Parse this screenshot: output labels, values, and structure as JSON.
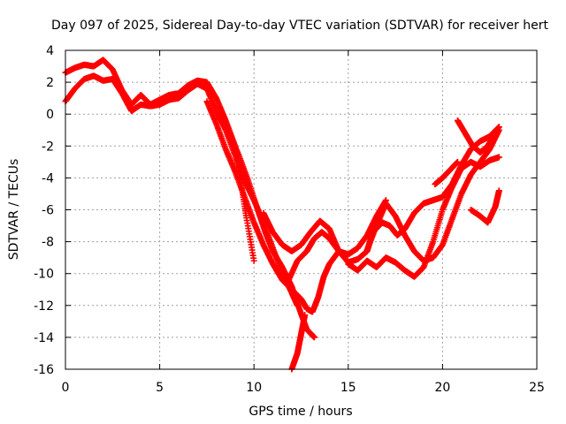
{
  "chart_data": {
    "type": "scatter",
    "title": "Day 097 of 2025, Sidereal Day-to-day VTEC variation (SDTVAR) for receiver hert",
    "xlabel": "GPS time / hours",
    "ylabel": "SDTVAR / TECUs",
    "xlim": [
      0,
      25
    ],
    "ylim": [
      -16,
      4
    ],
    "xticks": [
      "0",
      "5",
      "10",
      "15",
      "20",
      "25"
    ],
    "yticks": [
      "4",
      "2",
      "0",
      "-2",
      "-4",
      "-6",
      "-8",
      "-10",
      "-12",
      "-14",
      "-16"
    ],
    "grid": true,
    "marker": "+",
    "series_color": "#ff0000",
    "series": [
      {
        "x": [
          0.0,
          0.5,
          1.0,
          1.5,
          2.0,
          2.5,
          3.0,
          3.5,
          4.0,
          4.5,
          5.0,
          5.5,
          6.0,
          6.5,
          7.0,
          7.5,
          8.0,
          8.5,
          9.0,
          9.3,
          9.6,
          10.0
        ],
        "y": [
          2.6,
          2.9,
          3.1,
          3.0,
          3.4,
          2.8,
          1.5,
          0.6,
          1.2,
          0.6,
          0.9,
          1.2,
          1.3,
          1.8,
          2.1,
          2.0,
          1.0,
          -0.4,
          -2.0,
          -4.2,
          -6.5,
          -9.2
        ]
      },
      {
        "x": [
          0.0,
          0.5,
          1.0,
          1.5,
          2.0,
          2.5,
          3.0,
          3.5,
          4.0,
          4.5,
          5.0,
          5.5,
          6.0,
          6.5,
          7.0,
          7.5,
          8.0,
          8.5,
          9.0,
          9.5,
          10.0,
          10.5,
          11.0,
          11.5,
          12.0,
          12.3
        ],
        "y": [
          0.8,
          1.6,
          2.2,
          2.4,
          2.1,
          2.2,
          1.3,
          0.2,
          0.6,
          0.5,
          0.6,
          0.9,
          1.0,
          1.5,
          1.9,
          1.6,
          0.2,
          -1.0,
          -2.6,
          -4.2,
          -5.4,
          -6.8,
          -8.4,
          -10.0,
          -11.2,
          -12.0
        ]
      },
      {
        "x": [
          7.5,
          8.0,
          8.5,
          9.0,
          9.5,
          10.0,
          10.5,
          11.0,
          11.5,
          12.0,
          12.5,
          12.8,
          13.1,
          13.4,
          13.7,
          14.0,
          14.5
        ],
        "y": [
          0.8,
          -0.6,
          -2.2,
          -3.6,
          -5.2,
          -6.8,
          -8.2,
          -9.4,
          -10.4,
          -11.0,
          -11.6,
          -12.2,
          -12.4,
          -11.5,
          -10.2,
          -9.4,
          -8.6
        ]
      },
      {
        "x": [
          8.2,
          8.7,
          9.2,
          9.7,
          10.2,
          10.6,
          11.0,
          11.5,
          12.0,
          12.4,
          12.8,
          13.2
        ],
        "y": [
          0.4,
          -1.2,
          -2.6,
          -4.2,
          -6.0,
          -7.4,
          -8.6,
          -9.6,
          -10.8,
          -12.2,
          -13.5,
          -14.0
        ]
      },
      {
        "x": [
          12.0,
          12.3,
          12.5,
          12.7
        ],
        "y": [
          -16.0,
          -15.0,
          -13.8,
          -12.6
        ]
      },
      {
        "x": [
          10.5,
          11.0,
          11.5,
          12.0,
          12.5,
          13.0,
          13.5,
          14.0,
          14.5,
          15.0,
          15.5,
          16.0,
          16.5,
          17.0
        ],
        "y": [
          -6.2,
          -7.4,
          -8.2,
          -8.6,
          -8.2,
          -7.4,
          -6.7,
          -7.2,
          -8.6,
          -8.8,
          -8.4,
          -7.6,
          -6.4,
          -5.4
        ]
      },
      {
        "x": [
          11.8,
          12.3,
          12.8,
          13.2,
          13.6,
          14.0,
          14.5,
          15.0,
          15.5,
          16.0,
          16.3,
          16.8,
          17.2,
          17.6,
          18.0,
          18.5,
          19.0,
          19.5,
          20.0,
          20.5,
          21.0,
          21.5,
          22.0,
          22.5,
          23.0
        ],
        "y": [
          -10.5,
          -9.2,
          -8.6,
          -7.8,
          -7.4,
          -7.8,
          -8.6,
          -9.3,
          -9.1,
          -8.6,
          -7.4,
          -6.8,
          -7.0,
          -7.6,
          -7.2,
          -6.2,
          -5.6,
          -5.4,
          -5.2,
          -4.4,
          -3.2,
          -2.2,
          -1.7,
          -1.4,
          -0.8
        ]
      },
      {
        "x": [
          15.0,
          15.5,
          16.0,
          16.5,
          17.0,
          17.5,
          18.0,
          18.5,
          19.0,
          19.5,
          20.0,
          20.5,
          21.0,
          21.5,
          22.0,
          22.5,
          23.0
        ],
        "y": [
          -9.4,
          -9.8,
          -9.2,
          -9.6,
          -9.0,
          -9.3,
          -9.8,
          -10.2,
          -9.6,
          -8.0,
          -6.0,
          -4.6,
          -3.4,
          -3.0,
          -3.3,
          -2.9,
          -2.7
        ]
      },
      {
        "x": [
          16.0,
          16.5,
          17.0,
          17.5,
          18.0,
          18.5,
          19.0,
          19.5,
          20.0,
          20.5,
          21.0,
          21.5,
          22.0,
          22.5,
          23.0
        ],
        "y": [
          -8.5,
          -7.0,
          -5.6,
          -6.4,
          -7.6,
          -8.6,
          -9.2,
          -9.0,
          -8.2,
          -6.6,
          -5.0,
          -3.8,
          -3.0,
          -2.2,
          -1.0
        ]
      },
      {
        "x": [
          19.6,
          20.0,
          20.4,
          20.8
        ],
        "y": [
          -4.4,
          -4.0,
          -3.5,
          -3.0
        ]
      },
      {
        "x": [
          20.8,
          21.2,
          21.6,
          22.0,
          22.4,
          22.7
        ],
        "y": [
          -0.4,
          -1.2,
          -2.0,
          -2.4,
          -2.0,
          -1.4
        ]
      },
      {
        "x": [
          21.5,
          22.0,
          22.4,
          22.8,
          23.0
        ],
        "y": [
          -6.0,
          -6.4,
          -6.8,
          -5.8,
          -4.8
        ]
      }
    ]
  }
}
